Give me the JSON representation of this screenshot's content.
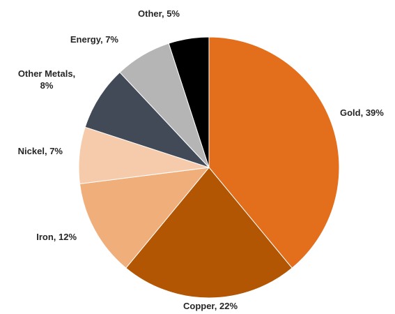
{
  "chart_data": {
    "type": "pie",
    "title": "",
    "start_angle_deg": 0,
    "direction": "clockwise",
    "slices": [
      {
        "label": "Gold",
        "value": 39,
        "label_text": "Gold, 39%",
        "color": "#E36F1C"
      },
      {
        "label": "Copper",
        "value": 22,
        "label_text": "Copper, 22%",
        "color": "#B35604"
      },
      {
        "label": "Iron",
        "value": 12,
        "label_text": "Iron, 12%",
        "color": "#F0AE7B"
      },
      {
        "label": "Nickel",
        "value": 7,
        "label_text": "Nickel, 7%",
        "color": "#F6CBAC"
      },
      {
        "label": "Other Metals",
        "value": 8,
        "label_text": "Other Metals, 8%",
        "color": "#414A56"
      },
      {
        "label": "Energy",
        "value": 7,
        "label_text": "Energy, 7%",
        "color": "#B5B5B5"
      },
      {
        "label": "Other",
        "value": 5,
        "label_text": "Other, 5%",
        "color": "#000000"
      }
    ],
    "legend": "none"
  }
}
